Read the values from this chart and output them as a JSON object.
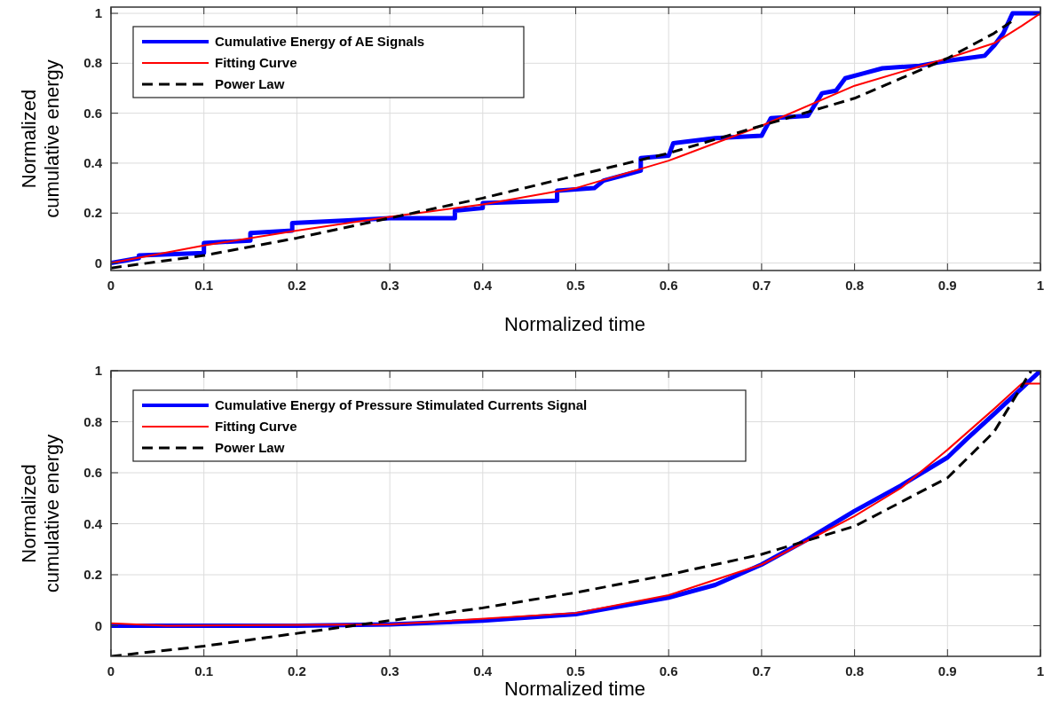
{
  "chart_data": [
    {
      "type": "line",
      "xlabel": "Normalized time",
      "ylabel": "Normalized cumulative energy",
      "xlim": [
        0,
        1
      ],
      "ylim": [
        -0.03,
        1.025
      ],
      "xticks": [
        0,
        0.1,
        0.2,
        0.3,
        0.4,
        0.5,
        0.6,
        0.7,
        0.8,
        0.9,
        1
      ],
      "yticks": [
        0,
        0.2,
        0.4,
        0.6,
        0.8,
        1
      ],
      "grid": true,
      "legend": "top left",
      "series": [
        {
          "name": "Cumulative Energy of AE Signals",
          "color": "#0000ff",
          "line_style": "solid",
          "x": [
            0,
            0.03,
            0.03,
            0.1,
            0.1,
            0.15,
            0.15,
            0.195,
            0.195,
            0.25,
            0.3,
            0.37,
            0.37,
            0.4,
            0.4,
            0.48,
            0.48,
            0.52,
            0.53,
            0.55,
            0.57,
            0.57,
            0.6,
            0.605,
            0.65,
            0.7,
            0.71,
            0.75,
            0.755,
            0.765,
            0.78,
            0.79,
            0.81,
            0.83,
            0.87,
            0.9,
            0.92,
            0.94,
            0.95,
            0.96,
            0.97,
            1
          ],
          "values": [
            0,
            0.02,
            0.03,
            0.04,
            0.08,
            0.09,
            0.12,
            0.13,
            0.16,
            0.17,
            0.18,
            0.18,
            0.21,
            0.22,
            0.24,
            0.25,
            0.29,
            0.3,
            0.33,
            0.35,
            0.37,
            0.42,
            0.43,
            0.48,
            0.5,
            0.51,
            0.58,
            0.59,
            0.62,
            0.68,
            0.69,
            0.74,
            0.76,
            0.78,
            0.79,
            0.81,
            0.82,
            0.83,
            0.87,
            0.92,
            1,
            1
          ]
        },
        {
          "name": "Fitting Curve",
          "color": "#ff0000",
          "line_style": "solid",
          "x": [
            0,
            0.1,
            0.2,
            0.3,
            0.4,
            0.5,
            0.6,
            0.7,
            0.8,
            0.9,
            0.95,
            0.98,
            1
          ],
          "values": [
            0,
            0.07,
            0.13,
            0.185,
            0.235,
            0.3,
            0.41,
            0.55,
            0.71,
            0.82,
            0.88,
            0.95,
            1
          ]
        },
        {
          "name": "Power Law",
          "color": "#000000",
          "line_style": "dashed",
          "x": [
            0,
            0.1,
            0.2,
            0.3,
            0.4,
            0.5,
            0.6,
            0.7,
            0.8,
            0.9,
            0.95,
            0.97
          ],
          "values": [
            -0.02,
            0.03,
            0.1,
            0.18,
            0.26,
            0.35,
            0.44,
            0.55,
            0.66,
            0.82,
            0.92,
            0.97
          ]
        }
      ]
    },
    {
      "type": "line",
      "xlabel": "Normalized time",
      "ylabel": "Normalized cumulative energy",
      "xlim": [
        0,
        1
      ],
      "ylim": [
        -0.12,
        1
      ],
      "xticks": [
        0,
        0.1,
        0.2,
        0.3,
        0.4,
        0.5,
        0.6,
        0.7,
        0.8,
        0.9,
        1
      ],
      "yticks": [
        0,
        0.2,
        0.4,
        0.6,
        0.8,
        1
      ],
      "grid": true,
      "legend": "top left",
      "series": [
        {
          "name": "Cumulative Energy of Pressure Stimulated Currents Signal",
          "color": "#0000ff",
          "line_style": "solid",
          "x": [
            0,
            0.2,
            0.3,
            0.4,
            0.5,
            0.6,
            0.65,
            0.7,
            0.75,
            0.8,
            0.85,
            0.9,
            0.92,
            0.95,
            1
          ],
          "values": [
            0,
            0,
            0.005,
            0.02,
            0.045,
            0.11,
            0.16,
            0.24,
            0.34,
            0.45,
            0.55,
            0.66,
            0.73,
            0.83,
            1
          ]
        },
        {
          "name": "Fitting Curve",
          "color": "#ff0000",
          "line_style": "solid",
          "x": [
            0,
            0.06,
            0.3,
            0.5,
            0.6,
            0.7,
            0.8,
            0.85,
            0.9,
            0.95,
            0.98,
            1
          ],
          "values": [
            0.01,
            0,
            0.005,
            0.05,
            0.12,
            0.24,
            0.43,
            0.54,
            0.69,
            0.85,
            0.95,
            0.95
          ]
        },
        {
          "name": "Power Law",
          "color": "#000000",
          "line_style": "dashed",
          "x": [
            0,
            0.1,
            0.2,
            0.3,
            0.4,
            0.5,
            0.6,
            0.7,
            0.8,
            0.9,
            0.95,
            0.99
          ],
          "values": [
            -0.12,
            -0.08,
            -0.03,
            0.02,
            0.07,
            0.13,
            0.2,
            0.28,
            0.39,
            0.58,
            0.76,
            1
          ]
        }
      ]
    }
  ]
}
